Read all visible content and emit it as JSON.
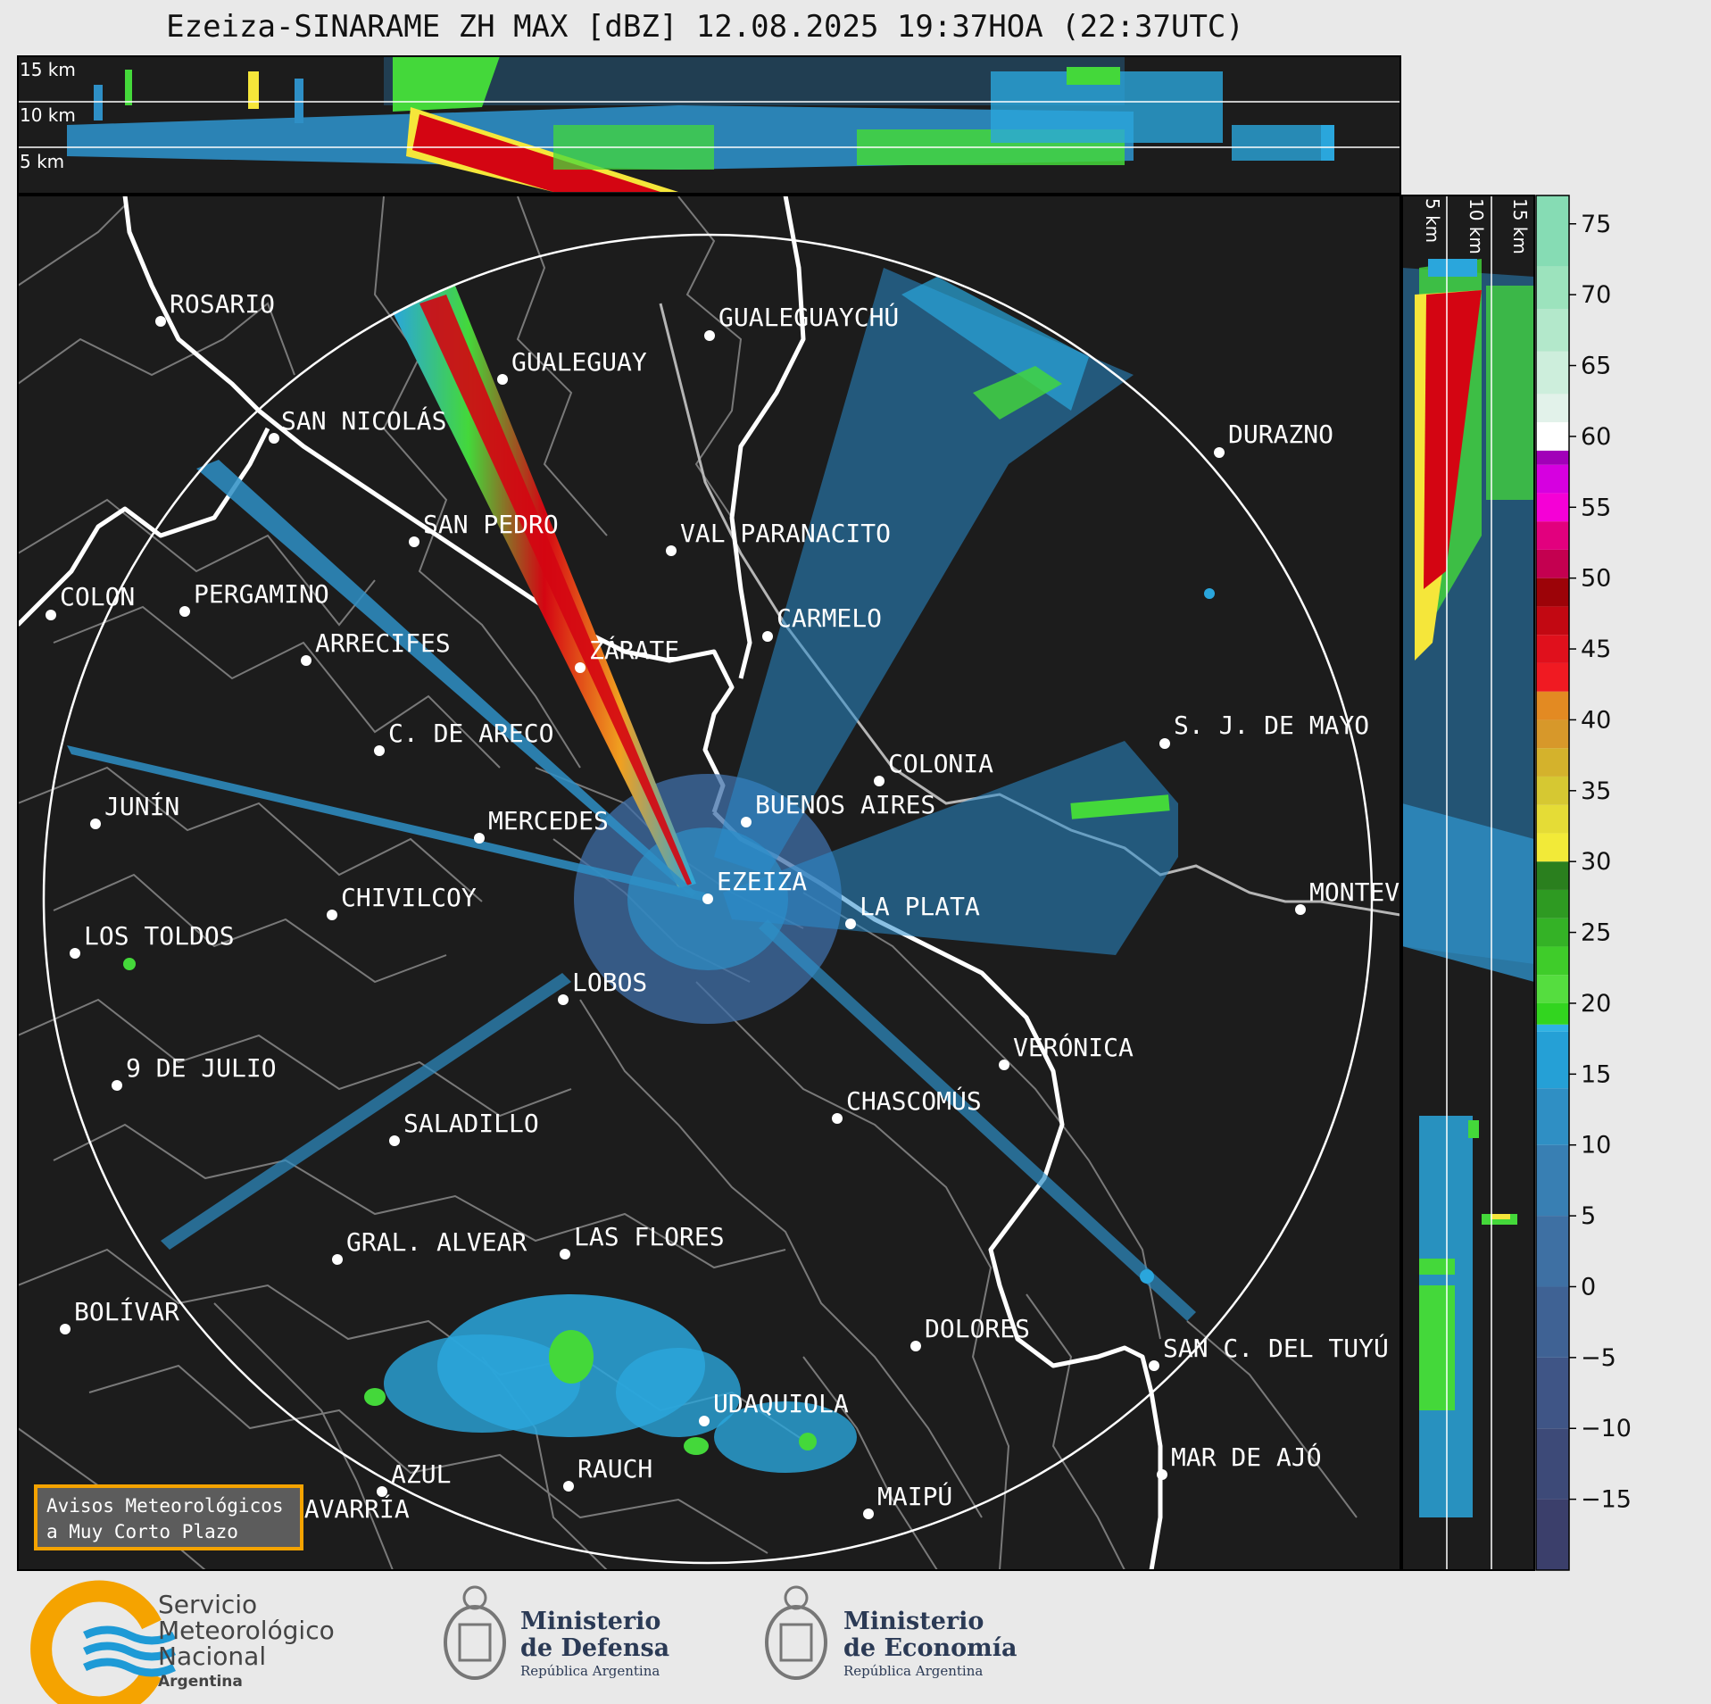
{
  "title": "Ezeiza-SINARAME ZH MAX [dBZ] 12.08.2025 19:37HOA (22:37UTC)",
  "top_panel": {
    "labels": [
      "15 km",
      "10 km",
      "5 km"
    ]
  },
  "side_panel": {
    "labels": [
      "5 km",
      "10 km",
      "15 km"
    ]
  },
  "colorbar": {
    "ticks": [
      "75",
      "70",
      "65",
      "60",
      "55",
      "50",
      "45",
      "40",
      "35",
      "30",
      "25",
      "20",
      "15",
      "10",
      "5",
      "0",
      "−5",
      "−10",
      "−15"
    ],
    "range": [
      -20,
      77
    ]
  },
  "cities": [
    {
      "name": "ROSARIO"
    },
    {
      "name": "GUALEGUAYCHÚ"
    },
    {
      "name": "GUALEGUAY"
    },
    {
      "name": "SAN NICOLÁS"
    },
    {
      "name": "DURAZNO"
    },
    {
      "name": "SAN PEDRO"
    },
    {
      "name": "VAL PARANACITO"
    },
    {
      "name": "COLON"
    },
    {
      "name": "PERGAMINO"
    },
    {
      "name": "CARMELO"
    },
    {
      "name": "ARRECIFES"
    },
    {
      "name": "ZÁRATE"
    },
    {
      "name": "S. J. DE MAYO"
    },
    {
      "name": "C. DE ARECO"
    },
    {
      "name": "COLONIA"
    },
    {
      "name": "JUNÍN"
    },
    {
      "name": "BUENOS AIRES"
    },
    {
      "name": "MERCEDES"
    },
    {
      "name": "EZEIZA"
    },
    {
      "name": "MONTEV"
    },
    {
      "name": "CHIVILCOY"
    },
    {
      "name": "LA PLATA"
    },
    {
      "name": "LOS TOLDOS"
    },
    {
      "name": "LOBOS"
    },
    {
      "name": "VERÓNICA"
    },
    {
      "name": "9 DE JULIO"
    },
    {
      "name": "CHASCOMÚS"
    },
    {
      "name": "SALADILLO"
    },
    {
      "name": "GRAL. ALVEAR"
    },
    {
      "name": "LAS FLORES"
    },
    {
      "name": "BOLÍVAR"
    },
    {
      "name": "DOLORES"
    },
    {
      "name": "SAN C. DEL TUYÚ"
    },
    {
      "name": "UDAQUIOLA"
    },
    {
      "name": "MAR DE AJÓ"
    },
    {
      "name": "AZUL"
    },
    {
      "name": "RAUCH"
    },
    {
      "name": "MAIPÚ"
    },
    {
      "name": "OLAVARRÍA"
    }
  ],
  "notice": {
    "line1": "Avisos Meteorológicos",
    "line2": "a Muy Corto Plazo"
  },
  "logos": {
    "smn": {
      "line1": "Servicio",
      "line2": "Meteorológico",
      "line3": "Nacional",
      "line4": "Argentina"
    },
    "defensa": {
      "line1": "Ministerio",
      "line2": "de Defensa",
      "line3": "República Argentina"
    },
    "economia": {
      "line1": "Ministerio",
      "line2": "de Economía",
      "line3": "República Argentina"
    }
  },
  "colors": {
    "background": "#1c1c1c",
    "outline": "#ffffff",
    "border": "#8a8a8a",
    "accent": "#f5a300"
  }
}
